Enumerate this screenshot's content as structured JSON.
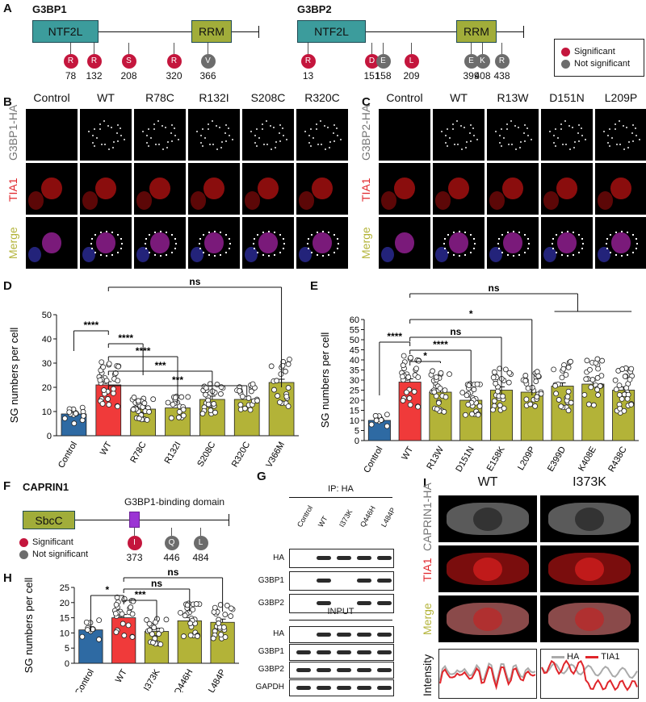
{
  "panels": {
    "A": "A",
    "B": "B",
    "C": "C",
    "D": "D",
    "E": "E",
    "F": "F",
    "G": "G",
    "H": "H",
    "I": "I"
  },
  "proteins": {
    "g3bp1": {
      "name": "G3BP1",
      "domains": [
        "NTF2L",
        "RRM"
      ],
      "sites": [
        {
          "aa": "R",
          "pos": "78",
          "sig": true
        },
        {
          "aa": "R",
          "pos": "132",
          "sig": true
        },
        {
          "aa": "S",
          "pos": "208",
          "sig": true
        },
        {
          "aa": "R",
          "pos": "320",
          "sig": true
        },
        {
          "aa": "V",
          "pos": "366",
          "sig": false
        }
      ]
    },
    "g3bp2": {
      "name": "G3BP2",
      "domains": [
        "NTF2L",
        "RRM"
      ],
      "sites": [
        {
          "aa": "R",
          "pos": "13",
          "sig": true
        },
        {
          "aa": "D",
          "pos": "151",
          "sig": true
        },
        {
          "aa": "E",
          "pos": "158",
          "sig": false
        },
        {
          "aa": "L",
          "pos": "209",
          "sig": true
        },
        {
          "aa": "E",
          "pos": "399",
          "sig": false
        },
        {
          "aa": "K",
          "pos": "408",
          "sig": false
        },
        {
          "aa": "R",
          "pos": "438",
          "sig": false
        }
      ]
    },
    "caprin1": {
      "name": "CAPRIN1",
      "domains": [
        "SbcC"
      ],
      "binding_label": "G3BP1-binding domain",
      "sites": [
        {
          "aa": "I",
          "pos": "373",
          "sig": true
        },
        {
          "aa": "Q",
          "pos": "446",
          "sig": false
        },
        {
          "aa": "L",
          "pos": "484",
          "sig": false
        }
      ]
    }
  },
  "legend": {
    "significant": "Significant",
    "not_significant": "Not significant"
  },
  "colors": {
    "significant": "#c4163d",
    "not_significant": "#6c6c6c",
    "control": "#2e6aa3",
    "wt": "#f03a3a",
    "mutant": "#b3b338",
    "ntf2l": "#3c9c9c",
    "rrm": "#a1ad3a",
    "binding": "#9b34d4",
    "merge_label": "#b3b338",
    "tia1_label": "#e0262b"
  },
  "microscopy": {
    "B": {
      "columns": [
        "Control",
        "WT",
        "R78C",
        "R132I",
        "S208C",
        "R320C"
      ],
      "rows": [
        "G3BP1-HA",
        "TIA1",
        "Merge"
      ]
    },
    "C": {
      "columns": [
        "Control",
        "WT",
        "R13W",
        "D151N",
        "L209P"
      ],
      "rows": [
        "G3BP2-HA",
        "TIA1",
        "Merge"
      ]
    },
    "I": {
      "columns": [
        "WT",
        "I373K"
      ],
      "rows": [
        "CAPRIN1-HA",
        "TIA1",
        "Merge",
        "Intensity"
      ],
      "legend": [
        "HA",
        "TIA1"
      ]
    }
  },
  "blot": {
    "ip_title": "IP: HA",
    "input_title": "INPUT",
    "lanes": [
      "Control",
      "WT",
      "I373K",
      "Q446H",
      "L484P"
    ],
    "ip_rows": [
      "HA",
      "G3BP1",
      "G3BP2"
    ],
    "input_rows": [
      "HA",
      "G3BP1",
      "G3BP2",
      "GAPDH"
    ]
  },
  "chart_data": [
    {
      "panel": "D",
      "type": "bar",
      "ylabel": "SG numbers per cell",
      "ylim": [
        0,
        50
      ],
      "yticks": [
        0,
        10,
        20,
        30,
        40,
        50
      ],
      "categories": [
        "Control",
        "WT",
        "R78C",
        "R132I",
        "S208C",
        "R320C",
        "V366M"
      ],
      "values": [
        9,
        21,
        11,
        11.5,
        15,
        15,
        22
      ],
      "significance": [
        {
          "from": "WT",
          "to": "Control",
          "label": "****"
        },
        {
          "from": "WT",
          "to": "R78C",
          "label": "****"
        },
        {
          "from": "WT",
          "to": "R132I",
          "label": "****"
        },
        {
          "from": "WT",
          "to": "S208C",
          "label": "***"
        },
        {
          "from": "WT",
          "to": "R320C",
          "label": "***"
        },
        {
          "from": "WT",
          "to": "V366M",
          "label": "ns"
        }
      ]
    },
    {
      "panel": "E",
      "type": "bar",
      "ylabel": "SG numbers per cell",
      "ylim": [
        0,
        60
      ],
      "yticks": [
        0,
        5,
        10,
        15,
        20,
        25,
        30,
        35,
        40,
        45,
        50,
        55,
        60
      ],
      "categories": [
        "Control",
        "WT",
        "R13W",
        "D151N",
        "E158K",
        "L209P",
        "E399D",
        "K408E",
        "R438C"
      ],
      "values": [
        10,
        29,
        24,
        20,
        25,
        24,
        27,
        28,
        25
      ],
      "significance": [
        {
          "from": "WT",
          "to": "Control",
          "label": "****"
        },
        {
          "from": "WT",
          "to": "R13W",
          "label": "*"
        },
        {
          "from": "WT",
          "to": "D151N",
          "label": "****"
        },
        {
          "from": "WT",
          "to": "E158K",
          "label": "ns"
        },
        {
          "from": "WT",
          "to": "L209P",
          "label": "*"
        },
        {
          "from": "WT",
          "to": "E399D-R438C",
          "label": "ns"
        }
      ]
    },
    {
      "panel": "H",
      "type": "bar",
      "ylabel": "SG numbers per cell",
      "ylim": [
        0,
        25
      ],
      "yticks": [
        0,
        5,
        10,
        15,
        20,
        25
      ],
      "categories": [
        "Control",
        "WT",
        "I373K",
        "Q446H",
        "L484P"
      ],
      "values": [
        11,
        15,
        10.5,
        14,
        13.5
      ],
      "significance": [
        {
          "from": "WT",
          "to": "Control",
          "label": "*"
        },
        {
          "from": "WT",
          "to": "I373K",
          "label": "***"
        },
        {
          "from": "WT",
          "to": "Q446H",
          "label": "ns"
        },
        {
          "from": "WT",
          "to": "L484P",
          "label": "ns"
        }
      ]
    }
  ]
}
